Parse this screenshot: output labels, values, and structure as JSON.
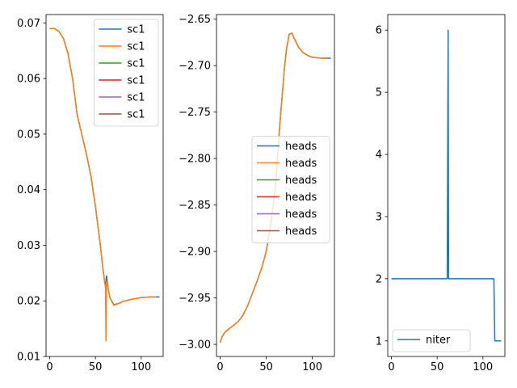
{
  "chart_data": [
    {
      "type": "line",
      "xlim": [
        -4,
        124
      ],
      "ylim": [
        0.01,
        0.0715
      ],
      "xticks": [
        0,
        50,
        100
      ],
      "yticks": [
        {
          "v": 0.01,
          "label": "0.01"
        },
        {
          "v": 0.02,
          "label": "0.02"
        },
        {
          "v": 0.03,
          "label": "0.03"
        },
        {
          "v": 0.04,
          "label": "0.04"
        },
        {
          "v": 0.05,
          "label": "0.05"
        },
        {
          "v": 0.06,
          "label": "0.06"
        },
        {
          "v": 0.07,
          "label": "0.07"
        }
      ],
      "legend_position": "top-right",
      "series": [
        {
          "name": "sc1",
          "color": "#1f77b4",
          "x": [
            0,
            5,
            10,
            15,
            20,
            25,
            30,
            35,
            40,
            45,
            50,
            55,
            58,
            60,
            61,
            62,
            63,
            64,
            66,
            70,
            75,
            80,
            90,
            100,
            110,
            120
          ],
          "y": [
            0.069,
            0.069,
            0.0685,
            0.0672,
            0.0645,
            0.06,
            0.0535,
            0.05,
            0.0465,
            0.0425,
            0.037,
            0.0305,
            0.026,
            0.0235,
            0.0225,
            0.0245,
            0.0235,
            0.022,
            0.0205,
            0.0193,
            0.0195,
            0.0199,
            0.0203,
            0.0206,
            0.0207,
            0.0207
          ]
        },
        {
          "name": "sc1",
          "color": "#ff7f0e",
          "x": [
            0,
            5,
            10,
            15,
            20,
            25,
            30,
            35,
            40,
            45,
            50,
            55,
            58,
            60,
            61,
            61.5,
            62,
            63,
            64,
            66,
            70,
            75,
            80,
            90,
            100,
            110,
            116
          ],
          "y": [
            0.069,
            0.069,
            0.0685,
            0.0672,
            0.0645,
            0.06,
            0.0535,
            0.05,
            0.0465,
            0.0425,
            0.037,
            0.0305,
            0.026,
            0.0235,
            0.0225,
            0.0128,
            0.0235,
            0.0235,
            0.022,
            0.0205,
            0.0192,
            0.0195,
            0.0199,
            0.0203,
            0.0206,
            0.0207,
            0.0207
          ]
        },
        {
          "name": "sc1",
          "color": "#2ca02c",
          "x": [],
          "y": []
        },
        {
          "name": "sc1",
          "color": "#d62728",
          "x": [],
          "y": []
        },
        {
          "name": "sc1",
          "color": "#9467bd",
          "x": [],
          "y": []
        },
        {
          "name": "sc1",
          "color": "#8c564b",
          "x": [],
          "y": []
        }
      ]
    },
    {
      "type": "line",
      "xlim": [
        -4,
        124
      ],
      "ylim": [
        -3.013,
        -2.645
      ],
      "xticks": [
        0,
        50,
        100
      ],
      "yticks": [
        {
          "v": -3.0,
          "label": "−3.00"
        },
        {
          "v": -2.95,
          "label": "−2.95"
        },
        {
          "v": -2.9,
          "label": "−2.90"
        },
        {
          "v": -2.85,
          "label": "−2.85"
        },
        {
          "v": -2.8,
          "label": "−2.80"
        },
        {
          "v": -2.75,
          "label": "−2.75"
        },
        {
          "v": -2.7,
          "label": "−2.70"
        },
        {
          "v": -2.65,
          "label": "−2.65"
        }
      ],
      "legend_position": "center-right",
      "series": [
        {
          "name": "heads",
          "color": "#1f77b4",
          "x": [
            0,
            2,
            5,
            10,
            15,
            20,
            25,
            30,
            35,
            40,
            45,
            50,
            55,
            60,
            65,
            70,
            72,
            75,
            78,
            80,
            85,
            90,
            95,
            100,
            110,
            120
          ],
          "y": [
            -2.998,
            -2.992,
            -2.987,
            -2.983,
            -2.979,
            -2.975,
            -2.968,
            -2.958,
            -2.945,
            -2.932,
            -2.918,
            -2.9,
            -2.87,
            -2.83,
            -2.76,
            -2.7,
            -2.682,
            -2.666,
            -2.665,
            -2.67,
            -2.68,
            -2.686,
            -2.689,
            -2.691,
            -2.692,
            -2.692
          ]
        },
        {
          "name": "heads",
          "color": "#ff7f0e",
          "x": [
            0,
            2,
            5,
            10,
            15,
            20,
            25,
            30,
            35,
            40,
            45,
            50,
            55,
            60,
            65,
            70,
            72,
            75,
            78,
            80,
            85,
            90,
            95,
            100,
            110,
            116
          ],
          "y": [
            -2.998,
            -2.992,
            -2.987,
            -2.983,
            -2.979,
            -2.975,
            -2.968,
            -2.958,
            -2.945,
            -2.932,
            -2.918,
            -2.9,
            -2.87,
            -2.83,
            -2.76,
            -2.7,
            -2.682,
            -2.666,
            -2.665,
            -2.67,
            -2.68,
            -2.686,
            -2.689,
            -2.691,
            -2.692,
            -2.692
          ]
        },
        {
          "name": "heads",
          "color": "#2ca02c",
          "x": [],
          "y": []
        },
        {
          "name": "heads",
          "color": "#d62728",
          "x": [],
          "y": []
        },
        {
          "name": "heads",
          "color": "#9467bd",
          "x": [],
          "y": []
        },
        {
          "name": "heads",
          "color": "#8c564b",
          "x": [],
          "y": []
        }
      ]
    },
    {
      "type": "line",
      "xlim": [
        -4,
        124
      ],
      "ylim": [
        0.75,
        6.25
      ],
      "xticks": [
        0,
        50,
        100
      ],
      "yticks": [
        {
          "v": 1,
          "label": "1"
        },
        {
          "v": 2,
          "label": "2"
        },
        {
          "v": 3,
          "label": "3"
        },
        {
          "v": 4,
          "label": "4"
        },
        {
          "v": 5,
          "label": "5"
        },
        {
          "v": 6,
          "label": "6"
        }
      ],
      "legend_position": "lower-left",
      "series": [
        {
          "name": "niter",
          "color": "#1f77b4",
          "x": [
            0,
            61,
            62,
            62.5,
            63,
            112,
            113,
            120
          ],
          "y": [
            2,
            2,
            6,
            2,
            2,
            2,
            1,
            1
          ]
        }
      ]
    }
  ]
}
